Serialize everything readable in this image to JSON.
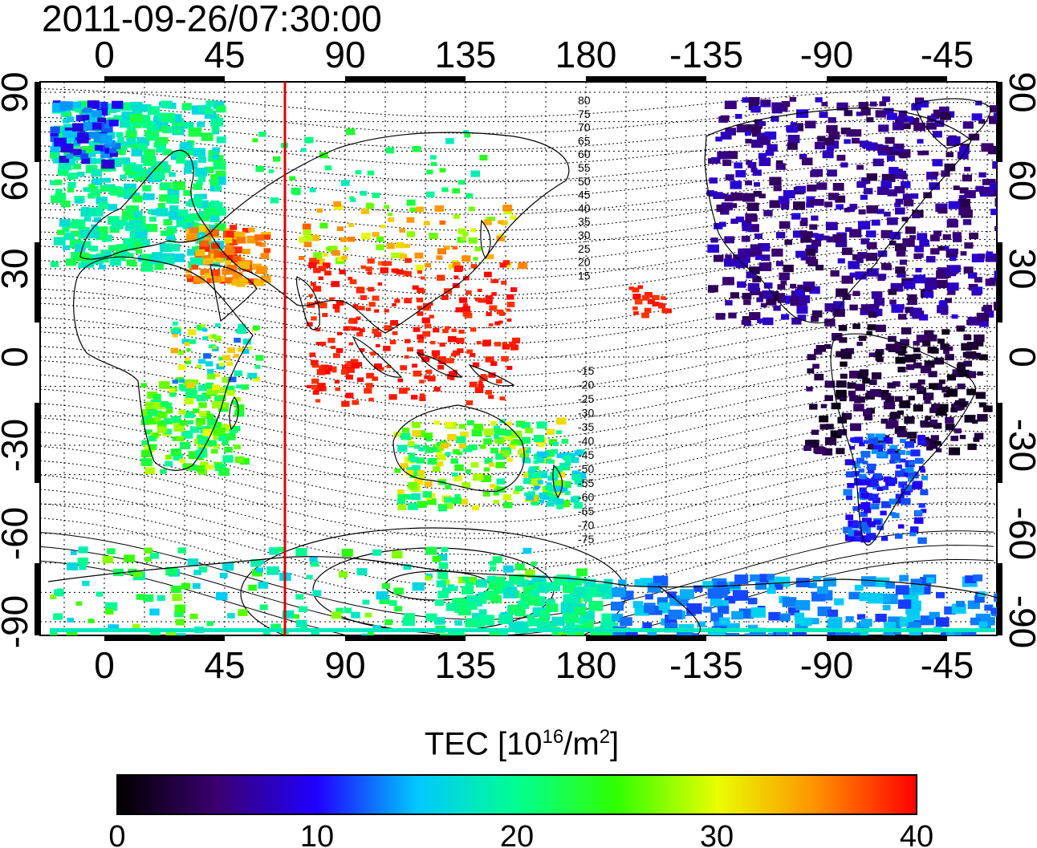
{
  "title": "2011-09-26/07:30:00",
  "map": {
    "x_tick_labels": [
      "0",
      "45",
      "90",
      "135",
      "180",
      "-135",
      "-90",
      "-45"
    ],
    "y_tick_labels": [
      "90",
      "60",
      "30",
      "0",
      "-30",
      "-60",
      "-90"
    ],
    "contour_labels_north": [
      "80",
      "75",
      "70",
      "65",
      "60",
      "55",
      "50",
      "45",
      "40",
      "35",
      "30",
      "25",
      "20",
      "15"
    ],
    "contour_labels_south": [
      "-15",
      "-20",
      "-25",
      "-30",
      "-35",
      "-40",
      "-45",
      "-50",
      "-55",
      "-60",
      "-65",
      "-70",
      "-75"
    ],
    "marker_line_color": "#e00000"
  },
  "colorbar": {
    "label_prefix": "TEC  [10",
    "label_sup1": "16",
    "label_mid": "/m",
    "label_sup2": "2",
    "label_suffix": "]",
    "ticks": [
      "0",
      "10",
      "20",
      "30",
      "40"
    ],
    "min": 0,
    "max": 40,
    "colors": [
      "#000000",
      "#3a0070",
      "#2000ff",
      "#00c8ff",
      "#00ff90",
      "#30ff00",
      "#e8ff00",
      "#ff9000",
      "#ff0000"
    ]
  }
}
